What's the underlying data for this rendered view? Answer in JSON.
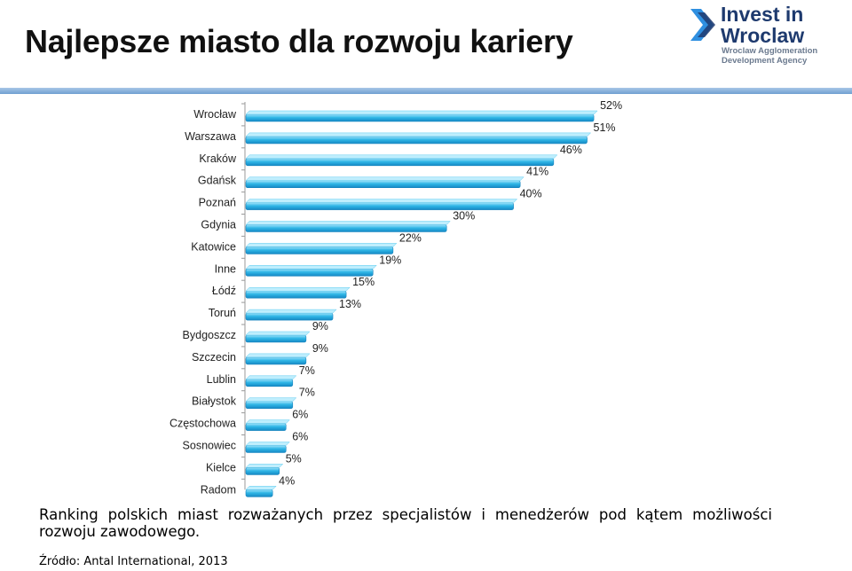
{
  "header": {
    "title": "Najlepsze miasto dla rozwoju kariery",
    "logo": {
      "line1": "Invest in",
      "line2": "Wroclaw",
      "sub1": "Wroclaw Agglomeration",
      "sub2": "Development Agency",
      "icon": "double-chevron-icon"
    }
  },
  "colors": {
    "bar": "#1ba8dc",
    "bar_light": "#7fd6f4",
    "accent_rule": "#7ba7d7",
    "logo_text": "#1e3a6e"
  },
  "chart_data": {
    "type": "bar",
    "orientation": "horizontal",
    "categories": [
      "Wrocław",
      "Warszawa",
      "Kraków",
      "Gdańsk",
      "Poznań",
      "Gdynia",
      "Katowice",
      "Inne",
      "Łódź",
      "Toruń",
      "Bydgoszcz",
      "Szczecin",
      "Lublin",
      "Białystok",
      "Częstochowa",
      "Sosnowiec",
      "Kielce",
      "Radom"
    ],
    "values": [
      52,
      51,
      46,
      41,
      40,
      30,
      22,
      19,
      15,
      13,
      9,
      9,
      7,
      7,
      6,
      6,
      5,
      4
    ],
    "labels": [
      "52%",
      "51%",
      "46%",
      "41%",
      "40%",
      "30%",
      "22%",
      "19%",
      "15%",
      "13%",
      "9%",
      "9%",
      "7%",
      "7%",
      "6%",
      "6%",
      "5%",
      "4%"
    ],
    "xlim": [
      0,
      60
    ],
    "unit": "%",
    "grid": false,
    "legend": "none"
  },
  "caption": "Ranking polskich miast rozważanych przez specjalistów i menedżerów pod kątem możliwości rozwoju zawodowego.",
  "source": "Źródło:  Antal International, 2013"
}
